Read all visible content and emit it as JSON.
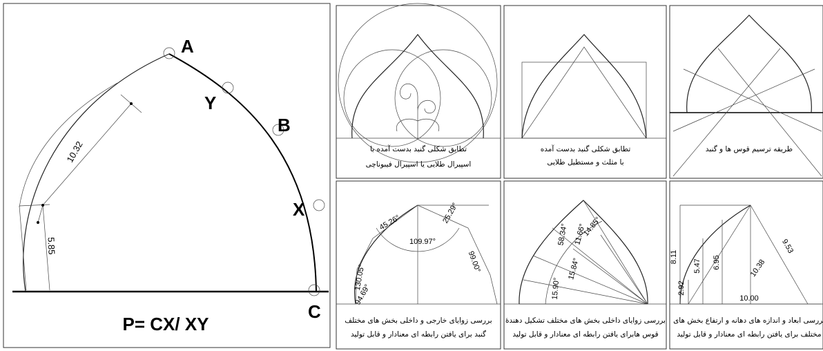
{
  "main": {
    "labels": {
      "a": "A",
      "y": "Y",
      "b": "B",
      "x": "X",
      "c": "C"
    },
    "dimensions": [
      "10.32",
      "5.85"
    ],
    "formula": "P= CX/ XY"
  },
  "panels": [
    {
      "caption": [
        "تطابق شکلی گنبد بدست آمده با",
        "اسپیرال طلایی یا اسپیرال فیبوناچی"
      ]
    },
    {
      "caption": [
        "تطابق شکلی گنبد بدست آمده",
        "با مثلث و مستطیل طلایی"
      ]
    },
    {
      "caption": [
        "طریقه ترسیم قوس ها و گنبد"
      ]
    },
    {
      "caption": [
        "بررسی زوایای خارجی و داخلی بخش های مختلف",
        "گنبد برای یافتن رابطه ای معنادار و قابل تولید"
      ],
      "labels": [
        "45.26°",
        "25.29°",
        "109.97°",
        "99.00°",
        "130.05°",
        "94.69°"
      ]
    },
    {
      "caption": [
        "بررسی زوایای داخلی بخش های مختلف تشکیل دهندهٔ",
        "قوس هابرای یافتن رابطه ای معنادار و قابل تولید"
      ],
      "labels": [
        "58.34°",
        "11.66°",
        "14.85°",
        "15.84°",
        "15.90°"
      ]
    },
    {
      "caption": [
        "بررسی ابعاد و اندازه های دهانه و ارتفاع بخش های",
        "مختلف برای یافتن رابطه ای معنادار و قابل تولید"
      ],
      "labels": [
        "8.11",
        "5.47",
        "6.95",
        "9.53",
        "10.38",
        "2.92",
        "10.00"
      ]
    }
  ]
}
